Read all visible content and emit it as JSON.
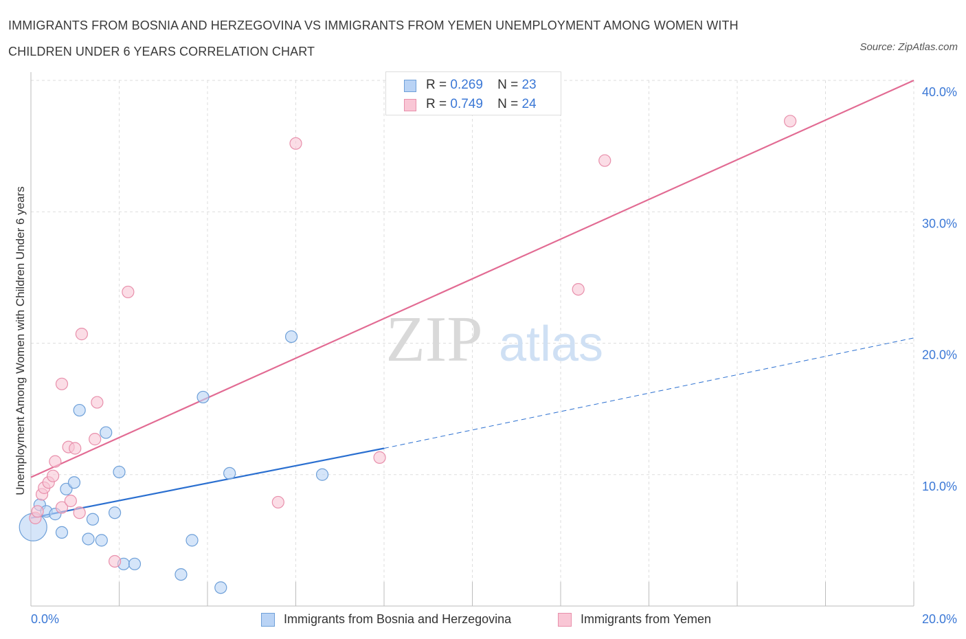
{
  "header": {
    "title_line1": "IMMIGRANTS FROM BOSNIA AND HERZEGOVINA VS IMMIGRANTS FROM YEMEN UNEMPLOYMENT AMONG WOMEN WITH",
    "title_line2": "CHILDREN UNDER 6 YEARS CORRELATION CHART",
    "source": "Source: ZipAtlas.com"
  },
  "colors": {
    "bosnia_fill": "#b9d3f5",
    "bosnia_stroke": "#6d9fd8",
    "bosnia_line": "#2a6fd0",
    "yemen_fill": "#f9c6d5",
    "yemen_stroke": "#e88fab",
    "yemen_line": "#e26b93",
    "grid": "#dddddd",
    "tick_label": "#3b78d6"
  },
  "legend": {
    "r_label": "R =",
    "n_label": "N =",
    "bosnia": {
      "r": "0.269",
      "n": "23"
    },
    "yemen": {
      "r": "0.749",
      "n": "24"
    }
  },
  "watermark": {
    "zip": "ZIP",
    "atlas": "atlas"
  },
  "chart_data": {
    "type": "scatter",
    "title": "IMMIGRANTS FROM BOSNIA AND HERZEGOVINA VS IMMIGRANTS FROM YEMEN UNEMPLOYMENT AMONG WOMEN WITH CHILDREN UNDER 6 YEARS CORRELATION CHART",
    "xlabel": "",
    "ylabel": "Unemployment Among Women with Children Under 6 years",
    "xlim": [
      0,
      20
    ],
    "ylim": [
      0,
      40
    ],
    "x_tick_labels": [
      "0.0%",
      "20.0%"
    ],
    "y_ticks": [
      10,
      20,
      30,
      40
    ],
    "y_tick_labels": [
      "10.0%",
      "20.0%",
      "30.0%",
      "40.0%"
    ],
    "grid": true,
    "legend_position": "bottom",
    "series": [
      {
        "name": "Immigrants from Bosnia and Herzegovina",
        "r": 0.269,
        "n": 23,
        "points": [
          {
            "x": 0.05,
            "y": 6.0,
            "big": true
          },
          {
            "x": 0.2,
            "y": 7.7
          },
          {
            "x": 0.35,
            "y": 7.2
          },
          {
            "x": 0.55,
            "y": 7.0
          },
          {
            "x": 0.7,
            "y": 5.6
          },
          {
            "x": 0.8,
            "y": 8.9
          },
          {
            "x": 0.98,
            "y": 9.4
          },
          {
            "x": 1.1,
            "y": 14.9
          },
          {
            "x": 1.3,
            "y": 5.1
          },
          {
            "x": 1.4,
            "y": 6.6
          },
          {
            "x": 1.6,
            "y": 5.0
          },
          {
            "x": 1.7,
            "y": 13.2
          },
          {
            "x": 1.9,
            "y": 7.1
          },
          {
            "x": 2.0,
            "y": 10.2
          },
          {
            "x": 2.1,
            "y": 3.2
          },
          {
            "x": 2.35,
            "y": 3.2
          },
          {
            "x": 3.4,
            "y": 2.4
          },
          {
            "x": 3.65,
            "y": 5.0
          },
          {
            "x": 3.9,
            "y": 15.9
          },
          {
            "x": 4.3,
            "y": 1.4
          },
          {
            "x": 4.5,
            "y": 10.1
          },
          {
            "x": 5.9,
            "y": 20.5
          },
          {
            "x": 6.6,
            "y": 10.0
          }
        ],
        "trend_solid": {
          "x": [
            0,
            8
          ],
          "y": [
            6.7,
            12.0
          ]
        },
        "trend_dashed": {
          "x": [
            8,
            20
          ],
          "y": [
            12.0,
            20.4
          ]
        }
      },
      {
        "name": "Immigrants from Yemen",
        "r": 0.749,
        "n": 24,
        "points": [
          {
            "x": 0.1,
            "y": 6.7
          },
          {
            "x": 0.15,
            "y": 7.2
          },
          {
            "x": 0.25,
            "y": 8.5
          },
          {
            "x": 0.3,
            "y": 9.0
          },
          {
            "x": 0.4,
            "y": 9.4
          },
          {
            "x": 0.5,
            "y": 9.9
          },
          {
            "x": 0.55,
            "y": 11.0
          },
          {
            "x": 0.7,
            "y": 7.5
          },
          {
            "x": 0.7,
            "y": 16.9
          },
          {
            "x": 0.85,
            "y": 12.1
          },
          {
            "x": 0.9,
            "y": 8.0
          },
          {
            "x": 1.0,
            "y": 12.0
          },
          {
            "x": 1.1,
            "y": 7.1
          },
          {
            "x": 1.15,
            "y": 20.7
          },
          {
            "x": 1.45,
            "y": 12.7
          },
          {
            "x": 1.5,
            "y": 15.5
          },
          {
            "x": 1.9,
            "y": 3.4
          },
          {
            "x": 2.2,
            "y": 23.9
          },
          {
            "x": 5.6,
            "y": 7.9
          },
          {
            "x": 6.0,
            "y": 35.2
          },
          {
            "x": 7.9,
            "y": 11.3
          },
          {
            "x": 12.4,
            "y": 24.1
          },
          {
            "x": 13.0,
            "y": 33.9
          },
          {
            "x": 17.2,
            "y": 36.9
          }
        ],
        "trend_solid": {
          "x": [
            0,
            20
          ],
          "y": [
            9.8,
            40.0
          ]
        }
      }
    ]
  }
}
